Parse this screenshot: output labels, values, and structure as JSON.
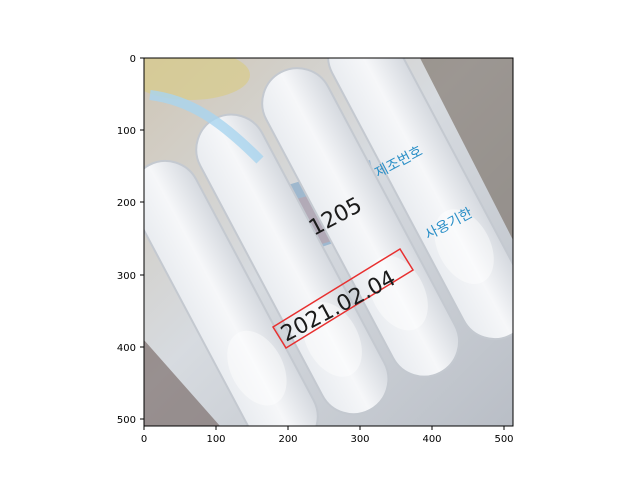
{
  "axes": {
    "x_ticks": [
      "0",
      "100",
      "200",
      "300",
      "400",
      "500"
    ],
    "y_ticks": [
      "0",
      "100",
      "200",
      "300",
      "400",
      "500"
    ]
  },
  "photo": {
    "subject": "transparent single-dose vials strip",
    "texts": {
      "batch_number": "1205",
      "date_stamp": "2021.02.04",
      "label_manufacture_no": "제조번호",
      "label_expiry": "사용기한"
    },
    "colors": {
      "plastic": "#d9dde2",
      "label_blue": "#2a8fc7",
      "box_red": "#e83030",
      "dark_print": "#1b1b1b"
    }
  }
}
